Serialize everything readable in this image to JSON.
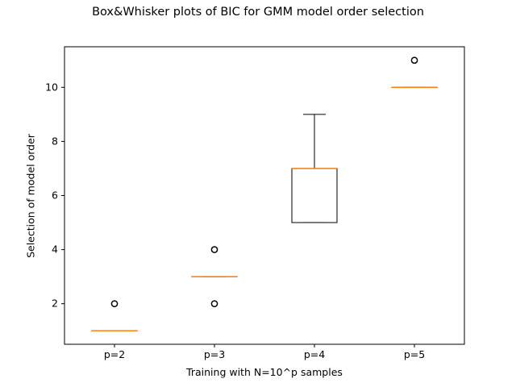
{
  "chart_data": {
    "type": "box",
    "title": "Box&Whisker plots of BIC for GMM model order selection",
    "xlabel": "Training with N=10^p samples",
    "ylabel": "Selection of model order",
    "categories": [
      "p=2",
      "p=3",
      "p=4",
      "p=5"
    ],
    "ylim": [
      0.5,
      11.5
    ],
    "yticks": [
      2,
      4,
      6,
      8,
      10
    ],
    "grid": false,
    "boxes": [
      {
        "label": "p=2",
        "whisker_low": 1,
        "q1": 1,
        "median": 1,
        "q3": 1,
        "whisker_high": 1,
        "outliers": [
          2
        ]
      },
      {
        "label": "p=3",
        "whisker_low": 3,
        "q1": 3,
        "median": 3,
        "q3": 3,
        "whisker_high": 3,
        "outliers": [
          2,
          4
        ]
      },
      {
        "label": "p=4",
        "whisker_low": 5,
        "q1": 5,
        "median": 7,
        "q3": 7,
        "whisker_high": 9,
        "outliers": []
      },
      {
        "label": "p=5",
        "whisker_low": 10,
        "q1": 10,
        "median": 10,
        "q3": 10,
        "whisker_high": 10,
        "outliers": [
          11
        ]
      }
    ],
    "colors": {
      "box": "#000000",
      "median": "#ff7f0e",
      "outlier": "#000000"
    }
  }
}
